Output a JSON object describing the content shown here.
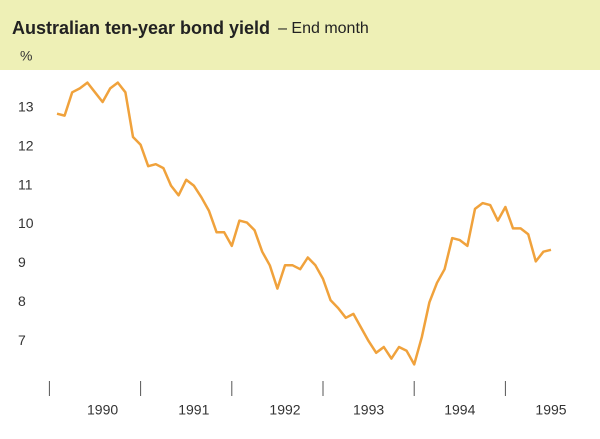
{
  "chart_data": {
    "type": "line",
    "title": "Australian ten-year bond yield",
    "subtitle": "– End month",
    "y_label": "%",
    "categories": [
      null,
      null,
      null,
      null,
      null,
      null,
      "1990",
      null,
      null,
      null,
      null,
      null,
      null,
      null,
      null,
      null,
      null,
      null,
      "1991",
      null,
      null,
      null,
      null,
      null,
      null,
      null,
      null,
      null,
      null,
      null,
      "1992",
      null,
      null,
      null,
      null,
      null,
      null,
      null,
      null,
      null,
      null,
      "1993",
      null,
      null,
      null,
      null,
      null,
      null,
      null,
      null,
      null,
      null,
      null,
      "1994",
      null,
      null,
      null,
      null,
      null,
      null,
      null,
      null,
      null,
      null,
      null,
      "1995"
    ],
    "series": [
      {
        "name": "Ten-year bond yield",
        "color": "#f0a23c",
        "values": [
          12.85,
          12.8,
          13.4,
          13.5,
          13.65,
          13.4,
          13.15,
          13.5,
          13.65,
          13.4,
          12.25,
          12.05,
          11.5,
          11.55,
          11.45,
          11.0,
          10.75,
          11.15,
          11.0,
          10.7,
          10.35,
          9.8,
          9.8,
          9.45,
          10.1,
          10.05,
          9.85,
          9.3,
          8.95,
          8.35,
          8.95,
          8.95,
          8.85,
          9.15,
          8.95,
          8.6,
          8.05,
          7.85,
          7.6,
          7.7,
          7.35,
          7.0,
          6.7,
          6.85,
          6.55,
          6.85,
          6.75,
          6.4,
          7.1,
          8.0,
          8.5,
          8.85,
          9.65,
          9.6,
          9.45,
          10.4,
          10.55,
          10.5,
          10.1,
          10.45,
          9.9,
          9.9,
          9.75,
          9.05,
          9.3,
          9.35
        ]
      }
    ],
    "ylim": [
      6,
      14
    ],
    "yticks": [
      7,
      8,
      9,
      10,
      11,
      12,
      13
    ],
    "grid": false,
    "header_color": "#eef0b6"
  }
}
